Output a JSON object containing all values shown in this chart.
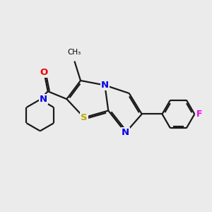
{
  "background_color": "#ebebeb",
  "bond_color": "#1a1a1a",
  "N_color": "#0000ee",
  "S_color": "#bbaa00",
  "O_color": "#ee0000",
  "F_color": "#ee00ee",
  "lw": 1.6,
  "figsize": [
    3.0,
    3.0
  ],
  "dpi": 100,
  "xlim": [
    0.5,
    9.5
  ],
  "ylim": [
    2.5,
    8.0
  ]
}
